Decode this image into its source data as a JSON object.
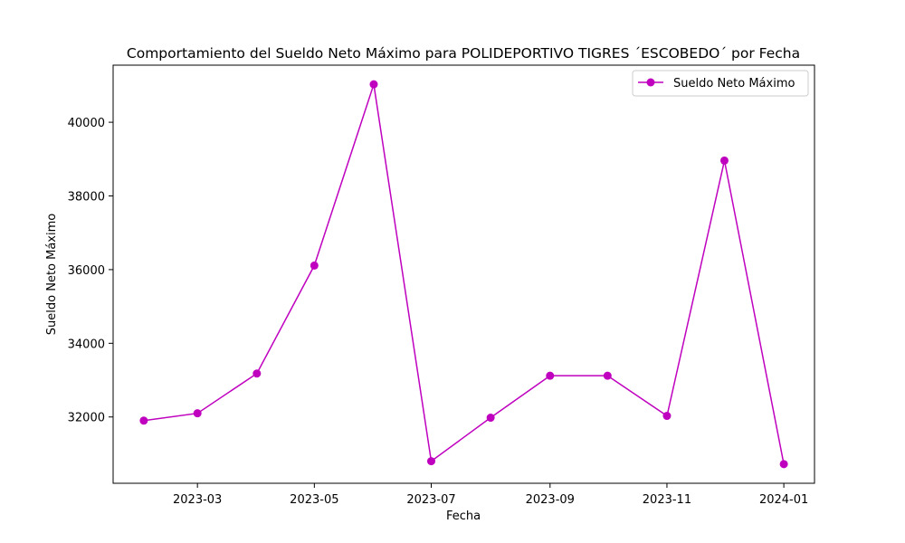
{
  "chart_data": {
    "type": "line",
    "title": "Comportamiento del Sueldo Neto Máximo para POLIDEPORTIVO TIGRES ´ESCOBEDO´ por Fecha",
    "xlabel": "Fecha",
    "ylabel": "Sueldo Neto Máximo",
    "x": [
      "2023-02-01",
      "2023-03-01",
      "2023-04-01",
      "2023-05-01",
      "2023-06-01",
      "2023-07-01",
      "2023-08-01",
      "2023-09-01",
      "2023-10-01",
      "2023-11-01",
      "2023-12-01",
      "2024-01-01"
    ],
    "series": [
      {
        "name": "Sueldo Neto Máximo",
        "color": "#bf00bf",
        "values": [
          31900,
          32100,
          33180,
          36110,
          41030,
          30800,
          31980,
          33120,
          33120,
          32030,
          38960,
          30720
        ]
      }
    ],
    "xticks": [
      "2023-03",
      "2023-05",
      "2023-07",
      "2023-09",
      "2023-11",
      "2024-01"
    ],
    "yticks": [
      32000,
      34000,
      36000,
      38000,
      40000
    ],
    "ylim": [
      30200,
      41550
    ],
    "xlim": [
      "2023-01-16",
      "2024-01-17"
    ],
    "grid": false,
    "legend_position": "top-right"
  }
}
